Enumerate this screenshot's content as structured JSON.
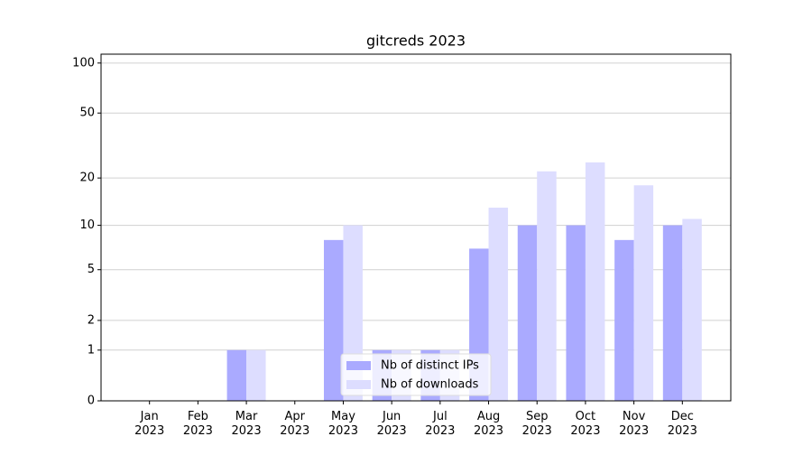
{
  "chart_data": {
    "type": "bar",
    "title": "gitcreds 2023",
    "categories": [
      "Jan 2023",
      "Feb 2023",
      "Mar 2023",
      "Apr 2023",
      "May 2023",
      "Jun 2023",
      "Jul 2023",
      "Aug 2023",
      "Sep 2023",
      "Oct 2023",
      "Nov 2023",
      "Dec 2023"
    ],
    "series": [
      {
        "name": "Nb of distinct IPs",
        "color": "#aaaaff",
        "values": [
          0,
          0,
          1,
          0,
          8,
          1,
          1,
          7,
          10,
          10,
          8,
          10
        ]
      },
      {
        "name": "Nb of downloads",
        "color": "#ddddff",
        "values": [
          0,
          0,
          1,
          0,
          10,
          1,
          1,
          13,
          22,
          25,
          18,
          11
        ]
      }
    ],
    "yscale": "log1p",
    "ylim": [
      0,
      113
    ],
    "yticks": [
      0,
      1,
      2,
      5,
      10,
      20,
      50,
      100
    ],
    "grid": true,
    "legend": "lower center"
  }
}
